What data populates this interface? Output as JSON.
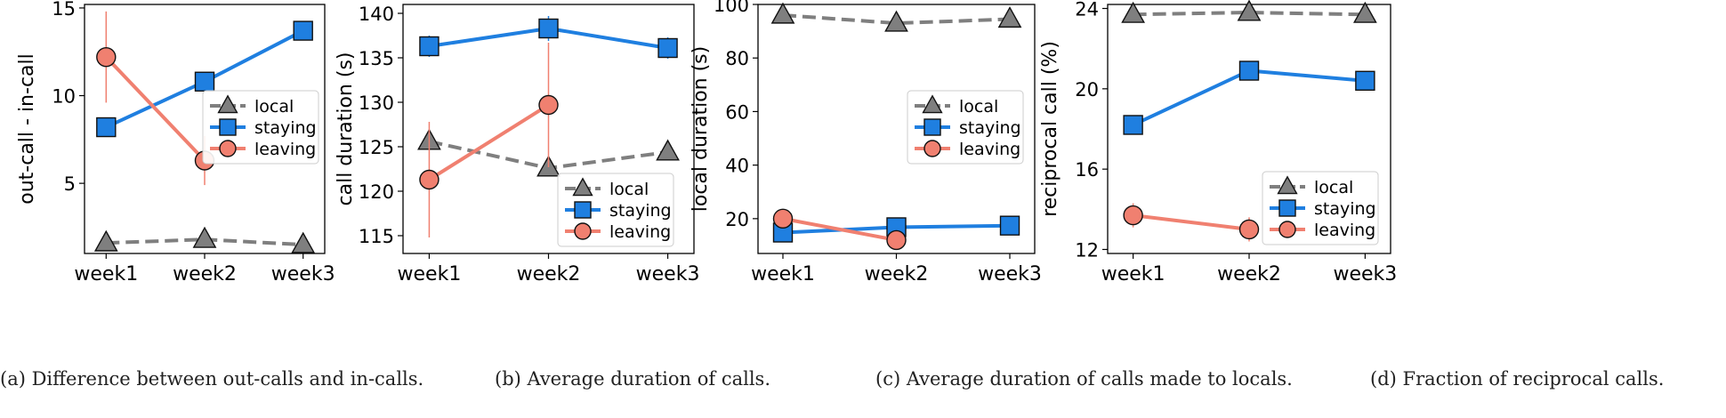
{
  "chart_data": [
    {
      "type": "line",
      "panel": "a",
      "categories": [
        "week1",
        "week2",
        "week3"
      ],
      "ylabel": "out-call - in-call",
      "ylim": [
        1.0,
        15.2
      ],
      "yticks": [
        5,
        10,
        15
      ],
      "legend_placement": "center-right",
      "series": [
        {
          "name": "local",
          "values": [
            1.6,
            1.8,
            1.5
          ],
          "color": "#7f7f7f",
          "marker": "triangle",
          "dashed": true,
          "err": [
            0,
            0,
            0
          ]
        },
        {
          "name": "staying",
          "values": [
            8.2,
            10.8,
            13.7
          ],
          "color": "#1f7fe0",
          "marker": "square",
          "dashed": false,
          "err": [
            0.3,
            0.3,
            0.5
          ]
        },
        {
          "name": "leaving",
          "values": [
            12.2,
            6.3,
            null
          ],
          "color": "#f08070",
          "marker": "circle",
          "dashed": false,
          "err": [
            2.6,
            1.4,
            0
          ]
        }
      ],
      "caption": "(a)  Difference between out-calls and in-calls."
    },
    {
      "type": "line",
      "panel": "b",
      "categories": [
        "week1",
        "week2",
        "week3"
      ],
      "ylabel": "call duration (s)",
      "ylim": [
        113.0,
        141.0
      ],
      "yticks": [
        115,
        120,
        125,
        130,
        135,
        140
      ],
      "legend_placement": "lower-right",
      "series": [
        {
          "name": "local",
          "values": [
            125.6,
            122.6,
            124.4
          ],
          "color": "#7f7f7f",
          "marker": "triangle",
          "dashed": true,
          "err": [
            0,
            0,
            0
          ]
        },
        {
          "name": "staying",
          "values": [
            136.3,
            138.3,
            136.1
          ],
          "color": "#1f7fe0",
          "marker": "square",
          "dashed": false,
          "err": [
            1.2,
            1.4,
            1.2
          ]
        },
        {
          "name": "leaving",
          "values": [
            121.3,
            129.7,
            null
          ],
          "color": "#f08070",
          "marker": "circle",
          "dashed": false,
          "err": [
            6.5,
            7.0,
            0
          ]
        }
      ],
      "caption": "(b)  Average duration of calls."
    },
    {
      "type": "line",
      "panel": "c",
      "categories": [
        "week1",
        "week2",
        "week3"
      ],
      "ylabel": "local duration (s)",
      "ylim": [
        7.0,
        100.0
      ],
      "yticks": [
        20,
        40,
        60,
        80,
        100
      ],
      "legend_placement": "center-right",
      "series": [
        {
          "name": "local",
          "values": [
            96.0,
            93.0,
            94.5
          ],
          "color": "#7f7f7f",
          "marker": "triangle",
          "dashed": true,
          "err": [
            0,
            0,
            0
          ]
        },
        {
          "name": "staying",
          "values": [
            14.8,
            16.8,
            17.4
          ],
          "color": "#1f7fe0",
          "marker": "square",
          "dashed": false,
          "err": [
            0,
            0,
            0
          ]
        },
        {
          "name": "leaving",
          "values": [
            20.0,
            12.0,
            null
          ],
          "color": "#f08070",
          "marker": "circle",
          "dashed": false,
          "err": [
            0,
            0,
            0
          ]
        }
      ],
      "caption": "(c)  Average duration of calls made to locals."
    },
    {
      "type": "line",
      "panel": "d",
      "categories": [
        "week1",
        "week2",
        "week3"
      ],
      "ylabel": "reciprocal call (%)",
      "ylim": [
        11.8,
        24.2
      ],
      "yticks": [
        12,
        16,
        20,
        24
      ],
      "legend_placement": "lower-right",
      "series": [
        {
          "name": "local",
          "values": [
            23.7,
            23.8,
            23.7
          ],
          "color": "#7f7f7f",
          "marker": "triangle",
          "dashed": true,
          "err": [
            0,
            0,
            0
          ]
        },
        {
          "name": "staying",
          "values": [
            18.2,
            20.9,
            20.4
          ],
          "color": "#1f7fe0",
          "marker": "square",
          "dashed": false,
          "err": [
            0,
            0,
            0
          ]
        },
        {
          "name": "leaving",
          "values": [
            13.7,
            13.0,
            null
          ],
          "color": "#f08070",
          "marker": "circle",
          "dashed": false,
          "err": [
            0.6,
            0.6,
            0
          ]
        }
      ],
      "caption": "(d)  Fraction of reciprocal calls."
    }
  ]
}
